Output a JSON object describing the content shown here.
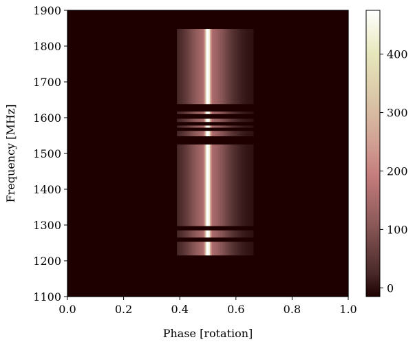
{
  "chart_data": {
    "type": "heatmap",
    "xlabel": "Phase [rotation]",
    "ylabel": "Frequency [MHz]",
    "xlim": [
      0.0,
      1.0
    ],
    "ylim": [
      1100,
      1900
    ],
    "x_ticks": [
      "0.0",
      "0.2",
      "0.4",
      "0.6",
      "0.8",
      "1.0"
    ],
    "y_ticks": [
      "1100",
      "1200",
      "1300",
      "1400",
      "1500",
      "1600",
      "1700",
      "1800",
      "1900"
    ],
    "colorbar": {
      "range": [
        -15,
        475
      ],
      "ticks": [
        "0",
        "100",
        "200",
        "300",
        "400"
      ],
      "colormap": "pink"
    },
    "pulse": {
      "phase_center": 0.5,
      "phase_extent": [
        0.39,
        0.66
      ],
      "freq_extent": [
        1212,
        1848
      ],
      "peak_value": 470,
      "background_value": 0
    },
    "masked_bands": [
      {
        "from": 1212,
        "to": 1215
      },
      {
        "from": 1253,
        "to": 1265
      },
      {
        "from": 1285,
        "to": 1297
      },
      {
        "from": 1525,
        "to": 1548
      },
      {
        "from": 1563,
        "to": 1572
      },
      {
        "from": 1578,
        "to": 1588
      },
      {
        "from": 1597,
        "to": 1610
      },
      {
        "from": 1617,
        "to": 1638
      }
    ]
  }
}
